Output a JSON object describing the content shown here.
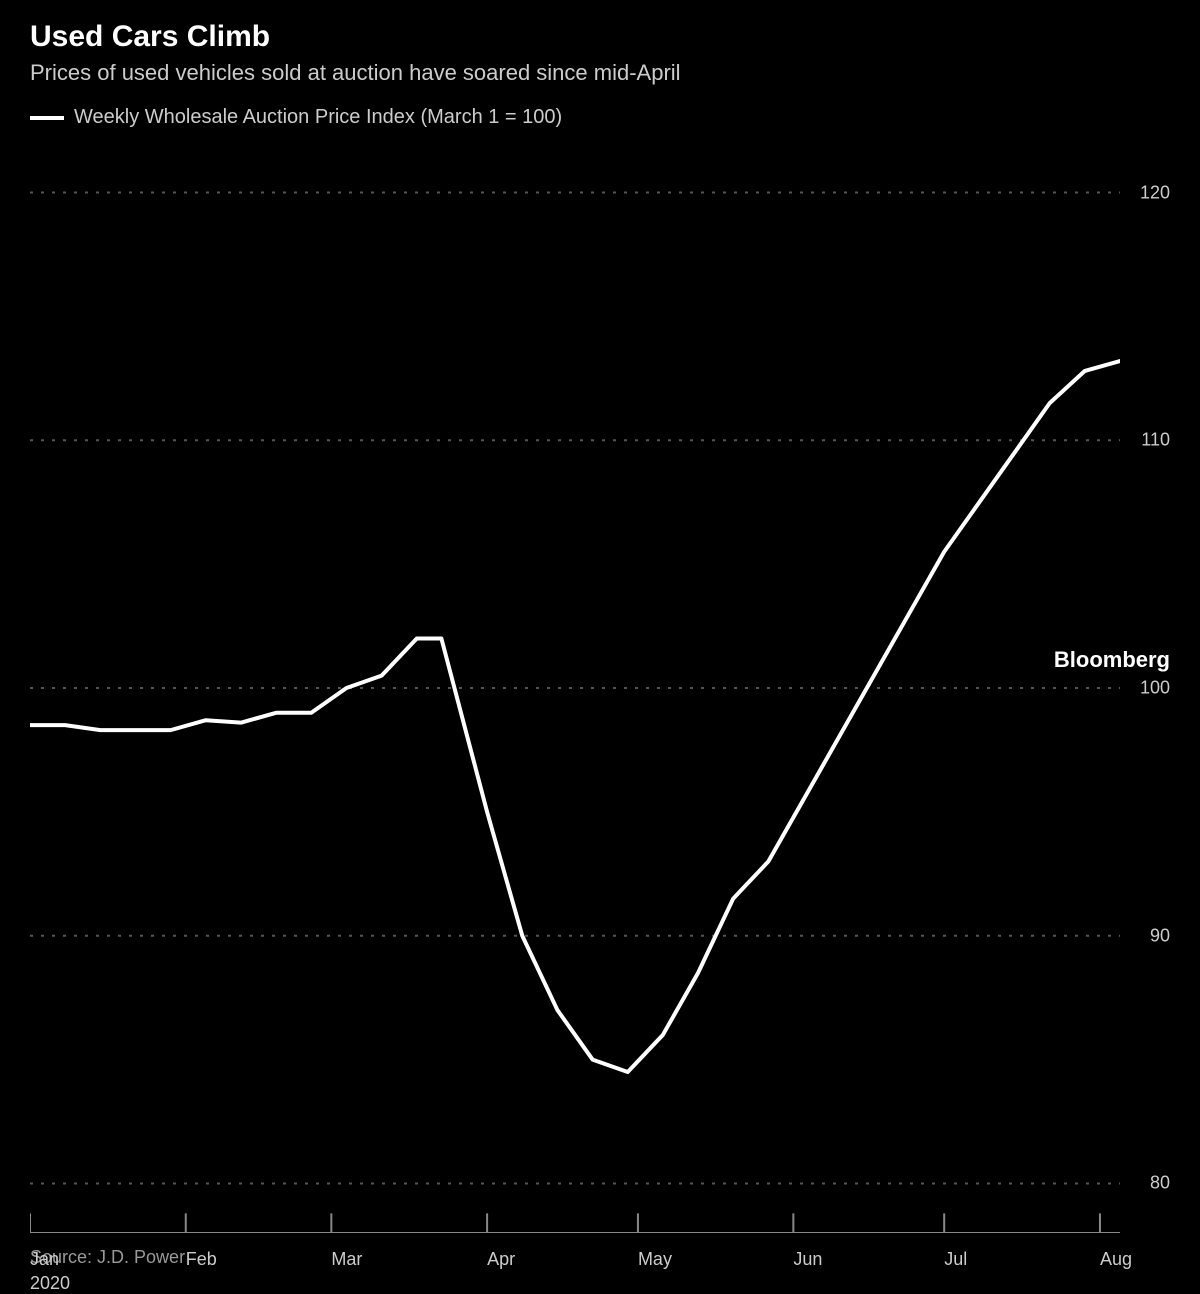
{
  "title": "Used Cars Climb",
  "subtitle": "Prices of used vehicles sold at auction have soared since mid-April",
  "legend": {
    "label": "Weekly Wholesale Auction Price Index (March 1 = 100)",
    "line_color": "#ffffff"
  },
  "chart": {
    "type": "line",
    "background_color": "#000000",
    "line_color": "#ffffff",
    "line_width": 4,
    "grid_color": "#555555",
    "axis_color": "#888888",
    "text_color": "#cccccc",
    "ylim": [
      78,
      122
    ],
    "yticks": [
      80,
      90,
      100,
      110,
      120
    ],
    "x_domain": [
      0,
      31
    ],
    "xticks": [
      {
        "pos": 0,
        "label": "Jan",
        "sublabel": "2020"
      },
      {
        "pos": 4.43,
        "label": "Feb"
      },
      {
        "pos": 8.57,
        "label": "Mar"
      },
      {
        "pos": 13.0,
        "label": "Apr"
      },
      {
        "pos": 17.29,
        "label": "May"
      },
      {
        "pos": 21.71,
        "label": "Jun"
      },
      {
        "pos": 26.0,
        "label": "Jul"
      },
      {
        "pos": 30.43,
        "label": "Aug"
      }
    ],
    "data": [
      {
        "x": 0,
        "y": 98.5
      },
      {
        "x": 1,
        "y": 98.5
      },
      {
        "x": 2,
        "y": 98.3
      },
      {
        "x": 3,
        "y": 98.3
      },
      {
        "x": 4,
        "y": 98.3
      },
      {
        "x": 5,
        "y": 98.7
      },
      {
        "x": 6,
        "y": 98.6
      },
      {
        "x": 7,
        "y": 99.0
      },
      {
        "x": 8,
        "y": 99.0
      },
      {
        "x": 9,
        "y": 100.0
      },
      {
        "x": 10,
        "y": 100.5
      },
      {
        "x": 11,
        "y": 102.0
      },
      {
        "x": 11.7,
        "y": 102.0
      },
      {
        "x": 13,
        "y": 95.0
      },
      {
        "x": 14,
        "y": 90.0
      },
      {
        "x": 15,
        "y": 87.0
      },
      {
        "x": 16,
        "y": 85.0
      },
      {
        "x": 17,
        "y": 84.5
      },
      {
        "x": 18,
        "y": 86.0
      },
      {
        "x": 19,
        "y": 88.5
      },
      {
        "x": 20,
        "y": 91.5
      },
      {
        "x": 21,
        "y": 93.0
      },
      {
        "x": 22,
        "y": 95.5
      },
      {
        "x": 23,
        "y": 98.0
      },
      {
        "x": 24,
        "y": 100.5
      },
      {
        "x": 25,
        "y": 103.0
      },
      {
        "x": 26,
        "y": 105.5
      },
      {
        "x": 27,
        "y": 107.5
      },
      {
        "x": 28,
        "y": 109.5
      },
      {
        "x": 29,
        "y": 111.5
      },
      {
        "x": 30,
        "y": 112.8
      },
      {
        "x": 31,
        "y": 113.2
      }
    ],
    "title_fontsize": 30,
    "subtitle_fontsize": 22,
    "legend_fontsize": 20,
    "axis_fontsize": 18
  },
  "source": "Source: J.D. Power",
  "brand": "Bloomberg"
}
